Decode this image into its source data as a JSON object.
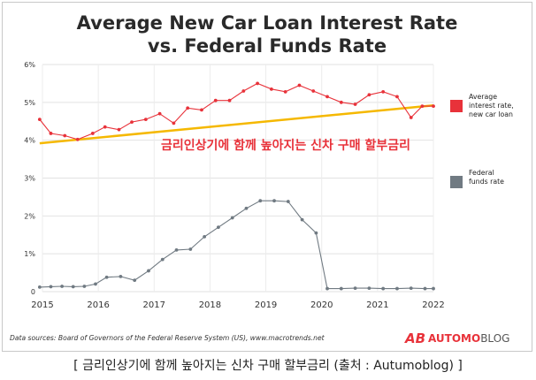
{
  "chart_data": {
    "type": "line",
    "title_line1": "Average New Car Loan Interest Rate",
    "title_line2": "vs. Federal Funds Rate",
    "x_ticks": [
      "2015",
      "2016",
      "2017",
      "2018",
      "2019",
      "2020",
      "2021",
      "2022"
    ],
    "y_ticks": [
      "0",
      "1%",
      "2%",
      "3%",
      "4%",
      "5%",
      "6%"
    ],
    "ylim": [
      0,
      6
    ],
    "xlim": [
      2015,
      2022
    ],
    "grid": true,
    "legend_position": "right",
    "series": [
      {
        "name_lines": [
          "Average",
          "interest rate,",
          "new car loan"
        ],
        "color": "#e8323a",
        "x": [
          2014.95,
          2015.15,
          2015.4,
          2015.63,
          2015.9,
          2016.12,
          2016.37,
          2016.6,
          2016.85,
          2017.1,
          2017.35,
          2017.6,
          2017.85,
          2018.1,
          2018.35,
          2018.6,
          2018.85,
          2019.1,
          2019.35,
          2019.6,
          2019.85,
          2020.1,
          2020.35,
          2020.6,
          2020.85,
          2021.1,
          2021.35,
          2021.6,
          2021.8,
          2022.0
        ],
        "y": [
          4.55,
          4.18,
          4.12,
          4.02,
          4.18,
          4.35,
          4.28,
          4.48,
          4.55,
          4.7,
          4.45,
          4.85,
          4.8,
          5.05,
          5.05,
          5.3,
          5.5,
          5.35,
          5.28,
          5.45,
          5.3,
          5.15,
          5.0,
          4.95,
          5.2,
          5.28,
          5.15,
          4.6,
          4.9,
          4.9
        ]
      },
      {
        "name_lines": [
          "Federal",
          "funds rate"
        ],
        "color": "#707a82",
        "x": [
          2014.95,
          2015.15,
          2015.35,
          2015.55,
          2015.75,
          2015.95,
          2016.15,
          2016.4,
          2016.65,
          2016.9,
          2017.15,
          2017.4,
          2017.65,
          2017.9,
          2018.15,
          2018.4,
          2018.65,
          2018.9,
          2019.15,
          2019.4,
          2019.65,
          2019.9,
          2020.1,
          2020.35,
          2020.6,
          2020.85,
          2021.1,
          2021.35,
          2021.6,
          2021.85,
          2022.0
        ],
        "y": [
          0.12,
          0.13,
          0.14,
          0.13,
          0.14,
          0.2,
          0.38,
          0.4,
          0.3,
          0.55,
          0.85,
          1.1,
          1.12,
          1.45,
          1.7,
          1.95,
          2.2,
          2.4,
          2.4,
          2.38,
          1.9,
          1.55,
          0.08,
          0.08,
          0.09,
          0.09,
          0.08,
          0.08,
          0.09,
          0.08,
          0.08
        ]
      }
    ],
    "trend_line": {
      "color": "#f5b800",
      "x": [
        2014.95,
        2022.0
      ],
      "y": [
        3.92,
        4.92
      ]
    },
    "annotation": "금리인상기에 함께 높아지는 신차 구매 할부금리",
    "source": "Data sources: Board of Governors of the Federal Reserve System (US), www.macrotrends.net"
  },
  "logo": {
    "mark": "AB",
    "text_bold": "AUTOMO",
    "text_light": "BLOG"
  },
  "caption": "[ 금리인상기에 함께 높아지는 신차 구매 할부금리 (출처 : Autumoblog) ]"
}
